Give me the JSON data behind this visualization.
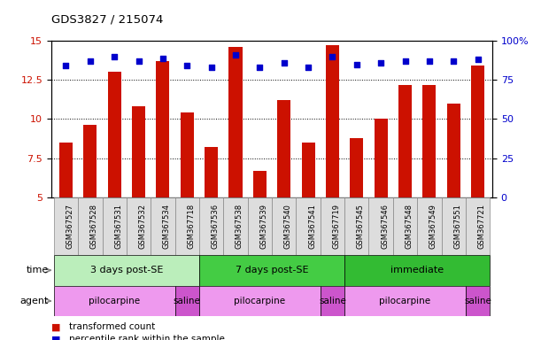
{
  "title": "GDS3827 / 215074",
  "samples": [
    "GSM367527",
    "GSM367528",
    "GSM367531",
    "GSM367532",
    "GSM367534",
    "GSM367718",
    "GSM367536",
    "GSM367538",
    "GSM367539",
    "GSM367540",
    "GSM367541",
    "GSM367719",
    "GSM367545",
    "GSM367546",
    "GSM367548",
    "GSM367549",
    "GSM367551",
    "GSM367721"
  ],
  "transformed_count": [
    8.5,
    9.6,
    13.0,
    10.8,
    13.7,
    10.4,
    8.2,
    14.6,
    6.7,
    11.2,
    8.5,
    14.7,
    8.8,
    10.0,
    12.2,
    12.2,
    11.0,
    13.4
  ],
  "percentile_rank": [
    84,
    87,
    90,
    87,
    89,
    84,
    83,
    91,
    83,
    86,
    83,
    90,
    85,
    86,
    87,
    87,
    87,
    88
  ],
  "bar_color": "#cc1100",
  "dot_color": "#0000cc",
  "ylim_left": [
    5,
    15
  ],
  "ylim_right": [
    0,
    100
  ],
  "yticks_left": [
    5,
    7.5,
    10,
    12.5,
    15
  ],
  "yticks_right": [
    0,
    25,
    50,
    75,
    100
  ],
  "time_groups": [
    {
      "label": "3 days post-SE",
      "start": 0,
      "end": 5,
      "color": "#bbeebb"
    },
    {
      "label": "7 days post-SE",
      "start": 6,
      "end": 11,
      "color": "#44cc44"
    },
    {
      "label": "immediate",
      "start": 12,
      "end": 17,
      "color": "#33bb33"
    }
  ],
  "agent_groups": [
    {
      "label": "pilocarpine",
      "start": 0,
      "end": 4,
      "color": "#ee99ee"
    },
    {
      "label": "saline",
      "start": 5,
      "end": 5,
      "color": "#cc55cc"
    },
    {
      "label": "pilocarpine",
      "start": 6,
      "end": 10,
      "color": "#ee99ee"
    },
    {
      "label": "saline",
      "start": 11,
      "end": 11,
      "color": "#cc55cc"
    },
    {
      "label": "pilocarpine",
      "start": 12,
      "end": 16,
      "color": "#ee99ee"
    },
    {
      "label": "saline",
      "start": 17,
      "end": 17,
      "color": "#cc55cc"
    }
  ],
  "legend_items": [
    {
      "label": "transformed count",
      "color": "#cc1100"
    },
    {
      "label": "percentile rank within the sample",
      "color": "#0000cc"
    }
  ],
  "sample_box_color": "#dddddd",
  "sample_box_edge": "#888888"
}
